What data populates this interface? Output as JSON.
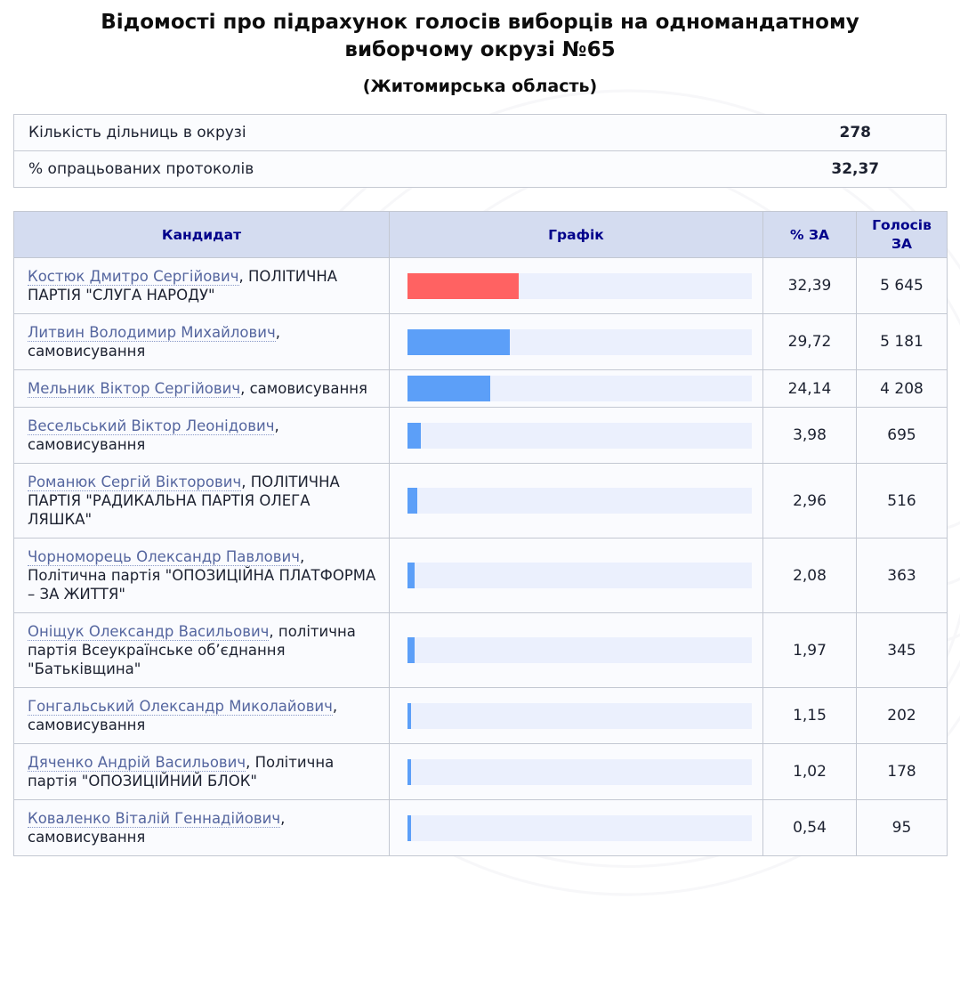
{
  "title": "Відомості про підрахунок голосів виборців на одномандатному виборчому окрузі №65",
  "subtitle": "(Житомирська область)",
  "summary": {
    "rows": [
      {
        "label": "Кількість дільниць в окрузі",
        "value": "278"
      },
      {
        "label": "% опрацьованих протоколів",
        "value": "32,37"
      }
    ]
  },
  "results": {
    "headers": {
      "candidate": "Кандидат",
      "chart": "Графік",
      "percent": "% ЗА",
      "votes": "Голосів ЗА"
    },
    "rows": [
      {
        "name": "Костюк Дмитро Сергійович",
        "party": "ПОЛІТИЧНА ПАРТІЯ \"СЛУГА НАРОДУ\"",
        "percent": "32,39",
        "percent_num": 32.39,
        "votes": "5 645",
        "bar_color": "#ff6262"
      },
      {
        "name": "Литвин Володимир Михайлович",
        "party": "самовисування",
        "percent": "29,72",
        "percent_num": 29.72,
        "votes": "5 181",
        "bar_color": "#5c9ff8"
      },
      {
        "name": "Мельник Віктор Сергійович",
        "party": "самовисування",
        "percent": "24,14",
        "percent_num": 24.14,
        "votes": "4 208",
        "bar_color": "#5c9ff8"
      },
      {
        "name": "Весельський Віктор Леонідович",
        "party": "самовисування",
        "percent": "3,98",
        "percent_num": 3.98,
        "votes": "695",
        "bar_color": "#5c9ff8"
      },
      {
        "name": "Романюк Сергій Вікторович",
        "party": "ПОЛІТИЧНА ПАРТІЯ \"РАДИКАЛЬНА ПАРТІЯ ОЛЕГА ЛЯШКА\"",
        "percent": "2,96",
        "percent_num": 2.96,
        "votes": "516",
        "bar_color": "#5c9ff8"
      },
      {
        "name": "Чорноморець Олександр Павлович",
        "party": "Політична партія \"ОПОЗИЦІЙНА ПЛАТФОРМА – ЗА ЖИТТЯ\"",
        "percent": "2,08",
        "percent_num": 2.08,
        "votes": "363",
        "bar_color": "#5c9ff8"
      },
      {
        "name": "Оніщук Олександр Васильович",
        "party": "політична партія Всеукраїнське об’єднання \"Батьківщина\"",
        "percent": "1,97",
        "percent_num": 1.97,
        "votes": "345",
        "bar_color": "#5c9ff8"
      },
      {
        "name": "Гонгальський Олександр Миколайович",
        "party": "самовисування",
        "percent": "1,15",
        "percent_num": 1.15,
        "votes": "202",
        "bar_color": "#5c9ff8"
      },
      {
        "name": "Дяченко Андрій Васильович",
        "party": "Політична партія \"ОПОЗИЦІЙНИЙ БЛОК\"",
        "percent": "1,02",
        "percent_num": 1.02,
        "votes": "178",
        "bar_color": "#5c9ff8"
      },
      {
        "name": "Коваленко Віталій Геннадійович",
        "party": "самовисування",
        "percent": "0,54",
        "percent_num": 0.54,
        "votes": "95",
        "bar_color": "#5c9ff8"
      }
    ]
  },
  "chart_data": {
    "type": "bar",
    "orientation": "horizontal",
    "categories": [
      "Костюк Дмитро Сергійович",
      "Литвин Володимир Михайлович",
      "Мельник Віктор Сергійович",
      "Весельський Віктор Леонідович",
      "Романюк Сергій Вікторович",
      "Чорноморець Олександр Павлович",
      "Оніщук Олександр Васильович",
      "Гонгальський Олександр Миколайович",
      "Дяченко Андрій Васильович",
      "Коваленко Віталій Геннадійович"
    ],
    "series": [
      {
        "name": "% ЗА",
        "values": [
          32.39,
          29.72,
          24.14,
          3.98,
          2.96,
          2.08,
          1.97,
          1.15,
          1.02,
          0.54
        ]
      },
      {
        "name": "Голосів ЗА",
        "values": [
          5645,
          5181,
          4208,
          695,
          516,
          363,
          345,
          202,
          178,
          95
        ]
      }
    ],
    "title": "Відомості про підрахунок голосів виборців на одномандатному виборчому окрузі №65",
    "xlabel": "",
    "ylabel": "",
    "xlim": [
      0,
      100
    ],
    "colors": {
      "leader_bar": "#ff6262",
      "other_bar": "#5c9ff8",
      "track": "#ebf0fd"
    }
  },
  "colors": {
    "header_bg": "#d4dcf0",
    "header_text": "#00008b",
    "link": "#55669f",
    "leader_bar": "#ff6262",
    "bar": "#5c9ff8",
    "bar_track": "#ebf0fd"
  }
}
